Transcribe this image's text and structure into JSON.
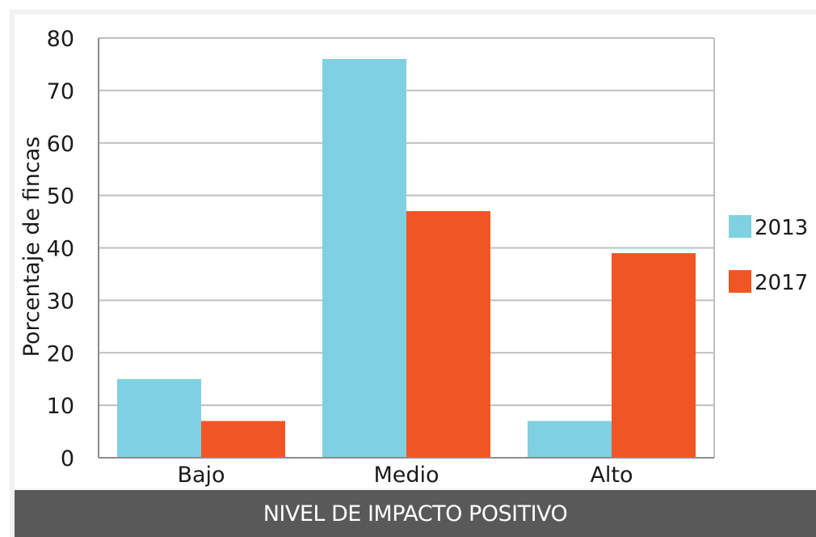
{
  "chart_data": {
    "type": "bar",
    "categories": [
      "Bajo",
      "Medio",
      "Alto"
    ],
    "series": [
      {
        "name": "2013",
        "values": [
          15,
          76,
          7
        ],
        "color": "#7fd0e0"
      },
      {
        "name": "2017",
        "values": [
          7,
          47,
          39
        ],
        "color": "#f05623"
      }
    ],
    "title": "",
    "xlabel": "NIVEL DE IMPACTO POSITIVO",
    "ylabel": "Porcentaje de fincas",
    "ylim": [
      0,
      80
    ],
    "yticks": [
      "0",
      "10",
      "20",
      "30",
      "40",
      "50",
      "60",
      "70",
      "80"
    ],
    "grid": true,
    "legend_position": "right"
  }
}
